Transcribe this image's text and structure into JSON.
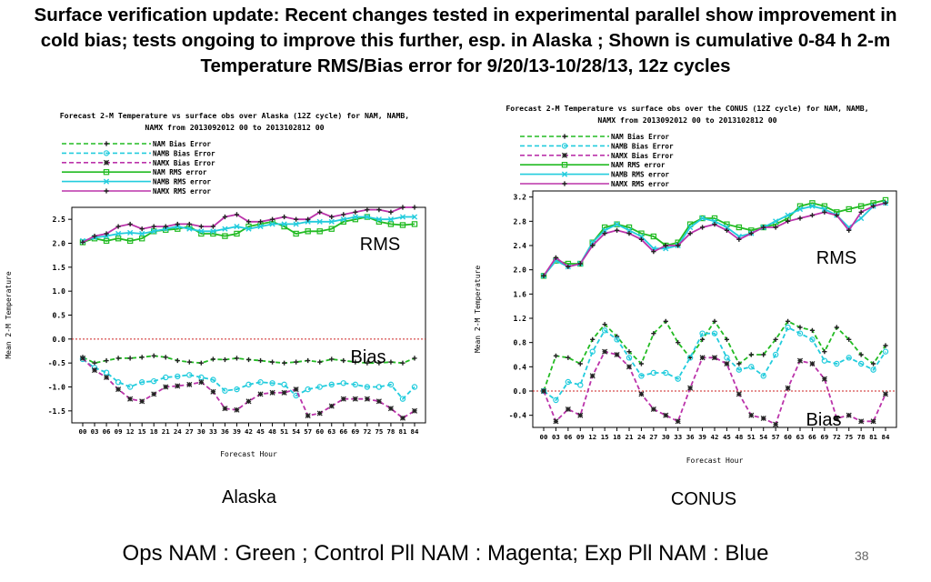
{
  "slide": {
    "title": "Surface verification update: Recent changes tested in experimental parallel show improvement in cold bias; tests ongoing to improve this further, esp. in Alaska ; Shown is cumulative 0-84 h 2-m Temperature RMS/Bias error for 9/20/13-10/28/13, 12z cycles",
    "footer": "Ops NAM : Green ; Control Pll NAM : Magenta; Exp Pll NAM : Blue",
    "slide_number": "38"
  },
  "panels": {
    "alaska": {
      "region_label": "Alaska",
      "rms_annotation": "RMS",
      "bias_annotation": "Bias"
    },
    "conus": {
      "region_label": "CONUS",
      "rms_annotation": "RMS",
      "bias_annotation": "Bias"
    }
  },
  "colors": {
    "nam": "#22bb22",
    "namb": "#22ccdd",
    "namx": "#bb33aa",
    "zero_line": "#cc2222"
  },
  "chart_data": [
    {
      "type": "line",
      "title": "Forecast 2-M Temperature vs surface obs over Alaska (12Z cycle) for NAM, NAMB,",
      "subtitle": "NAMX from 2013092012 00 to 2013102812 00",
      "xlabel": "Forecast Hour",
      "ylabel": "Mean 2-M Temperature",
      "ylim": [
        -1.75,
        2.75
      ],
      "yticks": [
        -1.5,
        -1.0,
        -0.5,
        0.0,
        0.5,
        1.0,
        1.5,
        2.0,
        2.5
      ],
      "ytick_labels": [
        "-1.5",
        "-1.0",
        "-0.5",
        "0.0",
        "0.5",
        "1.0",
        "1.5",
        "2.0",
        "2.5"
      ],
      "x": [
        "00",
        "03",
        "06",
        "09",
        "12",
        "15",
        "18",
        "21",
        "24",
        "27",
        "30",
        "33",
        "36",
        "39",
        "42",
        "45",
        "48",
        "51",
        "54",
        "57",
        "60",
        "63",
        "66",
        "69",
        "72",
        "75",
        "78",
        "81",
        "84"
      ],
      "legend": "top-left",
      "series": [
        {
          "name": "NAM Bias Error",
          "color_key": "nam",
          "style": "dashed",
          "marker": "+",
          "values": [
            -0.38,
            -0.5,
            -0.45,
            -0.4,
            -0.4,
            -0.38,
            -0.35,
            -0.38,
            -0.45,
            -0.48,
            -0.5,
            -0.42,
            -0.43,
            -0.4,
            -0.43,
            -0.45,
            -0.48,
            -0.5,
            -0.48,
            -0.45,
            -0.48,
            -0.42,
            -0.45,
            -0.48,
            -0.5,
            -0.5,
            -0.48,
            -0.5,
            -0.4
          ]
        },
        {
          "name": "NAMB Bias Error",
          "color_key": "namb",
          "style": "dashed",
          "marker": "o",
          "values": [
            -0.42,
            -0.6,
            -0.7,
            -0.9,
            -1.0,
            -0.9,
            -0.88,
            -0.8,
            -0.78,
            -0.75,
            -0.8,
            -0.85,
            -1.08,
            -1.05,
            -0.95,
            -0.9,
            -0.92,
            -0.95,
            -1.18,
            -1.05,
            -1.0,
            -0.95,
            -0.92,
            -0.95,
            -1.0,
            -1.0,
            -0.95,
            -1.25,
            -1.0
          ]
        },
        {
          "name": "NAMX Bias Error",
          "color_key": "namx",
          "style": "dashed",
          "marker": "*",
          "values": [
            -0.4,
            -0.65,
            -0.8,
            -1.05,
            -1.25,
            -1.3,
            -1.15,
            -1.0,
            -0.98,
            -0.95,
            -0.9,
            -1.1,
            -1.45,
            -1.48,
            -1.3,
            -1.15,
            -1.12,
            -1.12,
            -1.05,
            -1.6,
            -1.55,
            -1.4,
            -1.25,
            -1.25,
            -1.25,
            -1.3,
            -1.45,
            -1.65,
            -1.5
          ]
        },
        {
          "name": "NAM RMS error",
          "color_key": "nam",
          "style": "solid",
          "marker": "s",
          "values": [
            2.02,
            2.1,
            2.05,
            2.1,
            2.05,
            2.1,
            2.25,
            2.28,
            2.3,
            2.35,
            2.2,
            2.2,
            2.15,
            2.2,
            2.35,
            2.4,
            2.45,
            2.35,
            2.2,
            2.25,
            2.25,
            2.3,
            2.45,
            2.5,
            2.55,
            2.45,
            2.4,
            2.38,
            2.4
          ]
        },
        {
          "name": "NAMB RMS error",
          "color_key": "namb",
          "style": "solid",
          "marker": "x",
          "values": [
            2.05,
            2.12,
            2.15,
            2.2,
            2.22,
            2.2,
            2.25,
            2.3,
            2.35,
            2.3,
            2.25,
            2.25,
            2.3,
            2.35,
            2.3,
            2.35,
            2.4,
            2.4,
            2.4,
            2.45,
            2.45,
            2.45,
            2.5,
            2.55,
            2.55,
            2.5,
            2.5,
            2.55,
            2.55
          ]
        },
        {
          "name": "NAMX RMS error",
          "color_key": "namx",
          "style": "solid",
          "marker": "+",
          "values": [
            2.02,
            2.15,
            2.2,
            2.35,
            2.4,
            2.3,
            2.35,
            2.35,
            2.4,
            2.4,
            2.35,
            2.35,
            2.55,
            2.6,
            2.45,
            2.45,
            2.5,
            2.55,
            2.5,
            2.5,
            2.65,
            2.55,
            2.6,
            2.65,
            2.7,
            2.7,
            2.65,
            2.75,
            2.75
          ]
        }
      ]
    },
    {
      "type": "line",
      "title": "Forecast 2-M Temperature vs surface obs over the CONUS (12Z cycle) for NAM, NAMB,",
      "subtitle": "NAMX from 2013092012 00 to 2013102812 00",
      "xlabel": "Forecast Hour",
      "ylabel": "Mean 2-M Temperature",
      "ylim": [
        -0.6,
        3.3
      ],
      "yticks": [
        -0.4,
        0.0,
        0.4,
        0.8,
        1.2,
        1.6,
        2.0,
        2.4,
        2.8,
        3.2
      ],
      "ytick_labels": [
        "-0.4",
        "0.0",
        "0.4",
        "0.8",
        "1.2",
        "1.6",
        "2.0",
        "2.4",
        "2.8",
        "3.2"
      ],
      "x": [
        "00",
        "03",
        "06",
        "09",
        "12",
        "15",
        "18",
        "21",
        "24",
        "27",
        "30",
        "33",
        "36",
        "39",
        "42",
        "45",
        "48",
        "51",
        "54",
        "57",
        "60",
        "63",
        "66",
        "69",
        "72",
        "75",
        "78",
        "81",
        "84"
      ],
      "legend": "top-left",
      "series": [
        {
          "name": "NAM Bias Error",
          "color_key": "nam",
          "style": "dashed",
          "marker": "+",
          "values": [
            0.0,
            0.58,
            0.55,
            0.45,
            0.85,
            1.1,
            0.9,
            0.65,
            0.45,
            0.95,
            1.15,
            0.8,
            0.55,
            0.85,
            1.15,
            0.85,
            0.45,
            0.6,
            0.6,
            0.85,
            1.15,
            1.05,
            1.0,
            0.65,
            1.05,
            0.85,
            0.6,
            0.45,
            0.75
          ]
        },
        {
          "name": "NAMB Bias Error",
          "color_key": "namb",
          "style": "dashed",
          "marker": "o",
          "values": [
            0.0,
            -0.15,
            0.15,
            0.1,
            0.65,
            1.0,
            0.85,
            0.55,
            0.25,
            0.3,
            0.3,
            0.2,
            0.55,
            0.95,
            0.95,
            0.55,
            0.35,
            0.4,
            0.25,
            0.6,
            1.05,
            0.95,
            0.85,
            0.5,
            0.45,
            0.55,
            0.45,
            0.35,
            0.65
          ]
        },
        {
          "name": "NAMX Bias Error",
          "color_key": "namx",
          "style": "dashed",
          "marker": "*",
          "values": [
            0.0,
            -0.5,
            -0.3,
            -0.4,
            0.25,
            0.65,
            0.6,
            0.4,
            -0.05,
            -0.3,
            -0.4,
            -0.5,
            0.05,
            0.55,
            0.55,
            0.45,
            -0.05,
            -0.4,
            -0.45,
            -0.55,
            0.05,
            0.5,
            0.45,
            0.2,
            -0.45,
            -0.4,
            -0.5,
            -0.5,
            -0.05
          ]
        },
        {
          "name": "NAM RMS error",
          "color_key": "nam",
          "style": "solid",
          "marker": "s",
          "values": [
            1.9,
            2.15,
            2.1,
            2.1,
            2.45,
            2.7,
            2.75,
            2.7,
            2.6,
            2.55,
            2.4,
            2.45,
            2.75,
            2.85,
            2.85,
            2.75,
            2.7,
            2.65,
            2.7,
            2.75,
            2.85,
            3.05,
            3.1,
            3.05,
            2.95,
            3.0,
            3.05,
            3.1,
            3.15
          ]
        },
        {
          "name": "NAMB RMS error",
          "color_key": "namb",
          "style": "solid",
          "marker": "x",
          "values": [
            1.9,
            2.15,
            2.05,
            2.1,
            2.45,
            2.65,
            2.75,
            2.65,
            2.55,
            2.35,
            2.35,
            2.4,
            2.7,
            2.85,
            2.8,
            2.7,
            2.55,
            2.6,
            2.7,
            2.8,
            2.9,
            3.0,
            3.05,
            3.0,
            2.9,
            2.7,
            2.85,
            3.05,
            3.1
          ]
        },
        {
          "name": "NAMX RMS error",
          "color_key": "namx",
          "style": "solid",
          "marker": "+",
          "values": [
            1.9,
            2.2,
            2.05,
            2.1,
            2.4,
            2.6,
            2.65,
            2.6,
            2.5,
            2.3,
            2.4,
            2.4,
            2.6,
            2.7,
            2.75,
            2.65,
            2.5,
            2.6,
            2.7,
            2.7,
            2.8,
            2.85,
            2.9,
            2.95,
            2.9,
            2.65,
            2.95,
            3.05,
            3.1
          ]
        }
      ]
    }
  ]
}
